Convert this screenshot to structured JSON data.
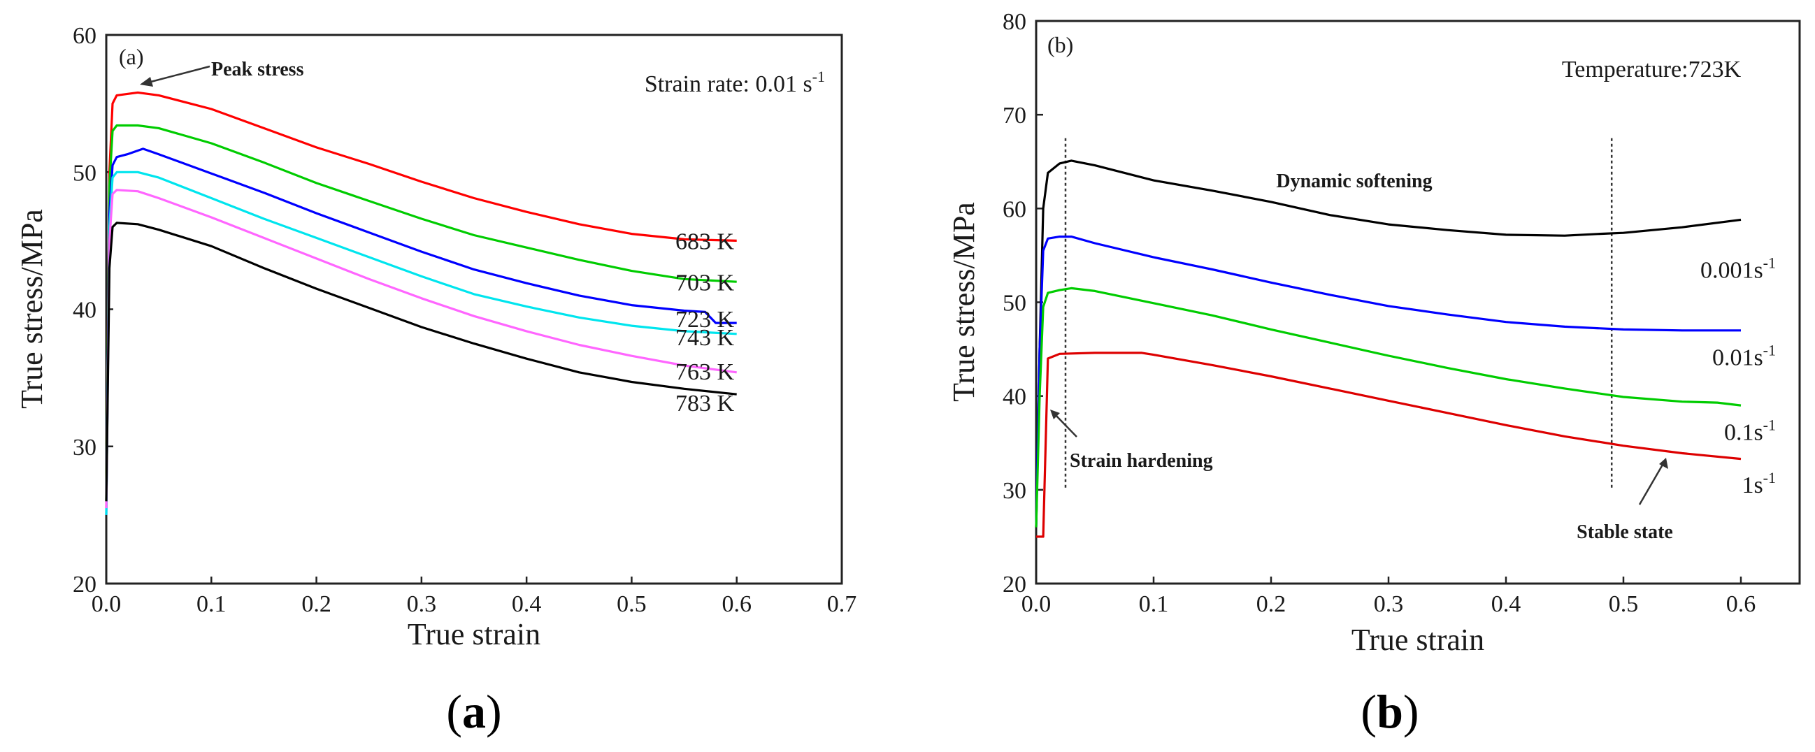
{
  "chart_data": [
    {
      "panel_label": "(a)",
      "caption": "a",
      "type": "line",
      "xlabel": "True strain",
      "ylabel": "True stress/MPa",
      "xlim": [
        0.0,
        0.7
      ],
      "ylim": [
        20,
        60
      ],
      "xticks": [
        0.0,
        0.1,
        0.2,
        0.3,
        0.4,
        0.5,
        0.6,
        0.7
      ],
      "yticks": [
        20,
        30,
        40,
        50,
        60
      ],
      "grid": false,
      "annotations": [
        {
          "text": "Peak stress",
          "bold": true,
          "target": [
            0.03,
            56.0
          ],
          "at": [
            0.1,
            57.5
          ]
        },
        {
          "text": "Strain rate: 0.01 s",
          "superscript": "-1",
          "at": [
            0.65,
            56.0
          ]
        }
      ],
      "series": [
        {
          "name": "683 K",
          "color": "#ff0000",
          "label_y": 45.0,
          "x": [
            0.0,
            0.003,
            0.006,
            0.01,
            0.03,
            0.05,
            0.1,
            0.15,
            0.2,
            0.25,
            0.3,
            0.35,
            0.4,
            0.45,
            0.5,
            0.55,
            0.6
          ],
          "y": [
            25.5,
            50.0,
            55.0,
            55.6,
            55.8,
            55.6,
            54.6,
            53.2,
            51.8,
            50.6,
            49.3,
            48.1,
            47.1,
            46.2,
            45.5,
            45.1,
            45.0
          ]
        },
        {
          "name": "703 K",
          "color": "#00cc00",
          "label_y": 42.0,
          "x": [
            0.0,
            0.003,
            0.006,
            0.01,
            0.03,
            0.05,
            0.1,
            0.15,
            0.2,
            0.25,
            0.3,
            0.35,
            0.4,
            0.45,
            0.5,
            0.55,
            0.6
          ],
          "y": [
            26.0,
            49.0,
            53.0,
            53.4,
            53.4,
            53.2,
            52.1,
            50.7,
            49.2,
            47.9,
            46.6,
            45.4,
            44.5,
            43.6,
            42.8,
            42.2,
            42.0
          ]
        },
        {
          "name": "723 K",
          "color": "#0000ff",
          "label_y": 39.3,
          "x": [
            0.0,
            0.003,
            0.006,
            0.01,
            0.02,
            0.035,
            0.05,
            0.1,
            0.15,
            0.2,
            0.25,
            0.3,
            0.35,
            0.4,
            0.45,
            0.5,
            0.55,
            0.57,
            0.58,
            0.6
          ],
          "y": [
            25.0,
            47.0,
            50.5,
            51.1,
            51.3,
            51.7,
            51.3,
            49.9,
            48.5,
            47.0,
            45.6,
            44.2,
            42.9,
            41.9,
            41.0,
            40.3,
            39.9,
            39.8,
            39.0,
            39.0
          ]
        },
        {
          "name": "743 K",
          "color": "#00e5ee",
          "label_y": 38.0,
          "x": [
            0.0,
            0.003,
            0.006,
            0.01,
            0.03,
            0.05,
            0.1,
            0.15,
            0.2,
            0.25,
            0.3,
            0.35,
            0.4,
            0.45,
            0.5,
            0.55,
            0.6
          ],
          "y": [
            25.0,
            46.0,
            49.6,
            50.0,
            50.0,
            49.6,
            48.1,
            46.6,
            45.2,
            43.8,
            42.4,
            41.1,
            40.2,
            39.4,
            38.8,
            38.4,
            38.2
          ]
        },
        {
          "name": "763 K",
          "color": "#ff66ff",
          "label_y": 35.5,
          "x": [
            0.0,
            0.003,
            0.006,
            0.01,
            0.03,
            0.05,
            0.1,
            0.15,
            0.2,
            0.25,
            0.3,
            0.35,
            0.4,
            0.45,
            0.5,
            0.55,
            0.6
          ],
          "y": [
            25.5,
            45.0,
            48.4,
            48.7,
            48.6,
            48.1,
            46.7,
            45.2,
            43.7,
            42.2,
            40.8,
            39.5,
            38.4,
            37.4,
            36.6,
            35.9,
            35.4
          ]
        },
        {
          "name": "783 K",
          "color": "#000000",
          "label_y": 33.2,
          "x": [
            0.0,
            0.003,
            0.006,
            0.01,
            0.03,
            0.05,
            0.1,
            0.15,
            0.2,
            0.25,
            0.3,
            0.35,
            0.4,
            0.45,
            0.5,
            0.55,
            0.6
          ],
          "y": [
            26.0,
            43.0,
            46.0,
            46.3,
            46.2,
            45.8,
            44.6,
            43.0,
            41.5,
            40.1,
            38.7,
            37.5,
            36.4,
            35.4,
            34.7,
            34.2,
            33.8
          ]
        }
      ]
    },
    {
      "panel_label": "(b)",
      "caption": "b",
      "type": "line",
      "xlabel": "True strain",
      "ylabel": "True stress/MPa",
      "xlim": [
        0.0,
        0.65
      ],
      "ylim": [
        20,
        80
      ],
      "xticks": [
        0.0,
        0.1,
        0.2,
        0.3,
        0.4,
        0.5,
        0.6
      ],
      "yticks": [
        20,
        30,
        40,
        50,
        60,
        70,
        80
      ],
      "grid": false,
      "annotations": [
        {
          "text": "Temperature:723K",
          "at": [
            0.48,
            75.5
          ]
        },
        {
          "text": "Dynamic softening",
          "bold": true,
          "at": [
            0.27,
            62.5
          ]
        },
        {
          "text": "Strain hardening",
          "bold": true,
          "target": [
            0.012,
            36.0
          ],
          "at": [
            0.1,
            31.5
          ]
        },
        {
          "text": "Stable state",
          "bold": true,
          "target": [
            0.53,
            32.5
          ],
          "at": [
            0.52,
            24.5
          ]
        }
      ],
      "guide_lines": [
        0.025,
        0.49
      ],
      "series": [
        {
          "name": "0.001s",
          "superscript": "-1",
          "color": "#000000",
          "label_y": 53.5,
          "x": [
            0.0,
            0.003,
            0.006,
            0.01,
            0.02,
            0.03,
            0.05,
            0.1,
            0.15,
            0.2,
            0.25,
            0.3,
            0.35,
            0.4,
            0.45,
            0.48,
            0.5,
            0.55,
            0.6
          ],
          "y": [
            26.0,
            45.0,
            60.0,
            63.8,
            64.8,
            65.1,
            64.6,
            63.0,
            61.9,
            60.7,
            59.3,
            58.3,
            57.7,
            57.2,
            57.1,
            57.3,
            57.4,
            58.0,
            58.8
          ]
        },
        {
          "name": "0.01s",
          "superscript": "-1",
          "color": "#0000ff",
          "label_y": 44.2,
          "x": [
            0.0,
            0.003,
            0.006,
            0.01,
            0.02,
            0.03,
            0.05,
            0.1,
            0.15,
            0.2,
            0.25,
            0.3,
            0.35,
            0.4,
            0.45,
            0.5,
            0.55,
            0.6
          ],
          "y": [
            26.0,
            45.0,
            55.5,
            56.8,
            57.0,
            57.0,
            56.3,
            54.8,
            53.5,
            52.1,
            50.8,
            49.6,
            48.7,
            47.9,
            47.4,
            47.1,
            47.0,
            47.0
          ]
        },
        {
          "name": "0.1s",
          "superscript": "-1",
          "color": "#00cc00",
          "label_y": 36.2,
          "x": [
            0.0,
            0.003,
            0.006,
            0.01,
            0.02,
            0.03,
            0.05,
            0.1,
            0.15,
            0.2,
            0.25,
            0.3,
            0.35,
            0.4,
            0.45,
            0.5,
            0.55,
            0.58,
            0.6
          ],
          "y": [
            26.0,
            40.0,
            49.5,
            51.0,
            51.3,
            51.5,
            51.2,
            49.9,
            48.6,
            47.1,
            45.7,
            44.3,
            43.0,
            41.8,
            40.8,
            39.9,
            39.4,
            39.3,
            39.0
          ]
        },
        {
          "name": "1s",
          "superscript": "-1",
          "color": "#dd0000",
          "label_y": 30.6,
          "x": [
            0.0,
            0.002,
            0.006,
            0.01,
            0.02,
            0.05,
            0.09,
            0.1,
            0.15,
            0.2,
            0.25,
            0.3,
            0.35,
            0.4,
            0.45,
            0.5,
            0.55,
            0.6
          ],
          "y": [
            25.0,
            25.0,
            25.0,
            44.0,
            44.5,
            44.6,
            44.6,
            44.4,
            43.3,
            42.1,
            40.8,
            39.5,
            38.2,
            36.9,
            35.7,
            34.7,
            33.9,
            33.3
          ]
        }
      ]
    }
  ]
}
